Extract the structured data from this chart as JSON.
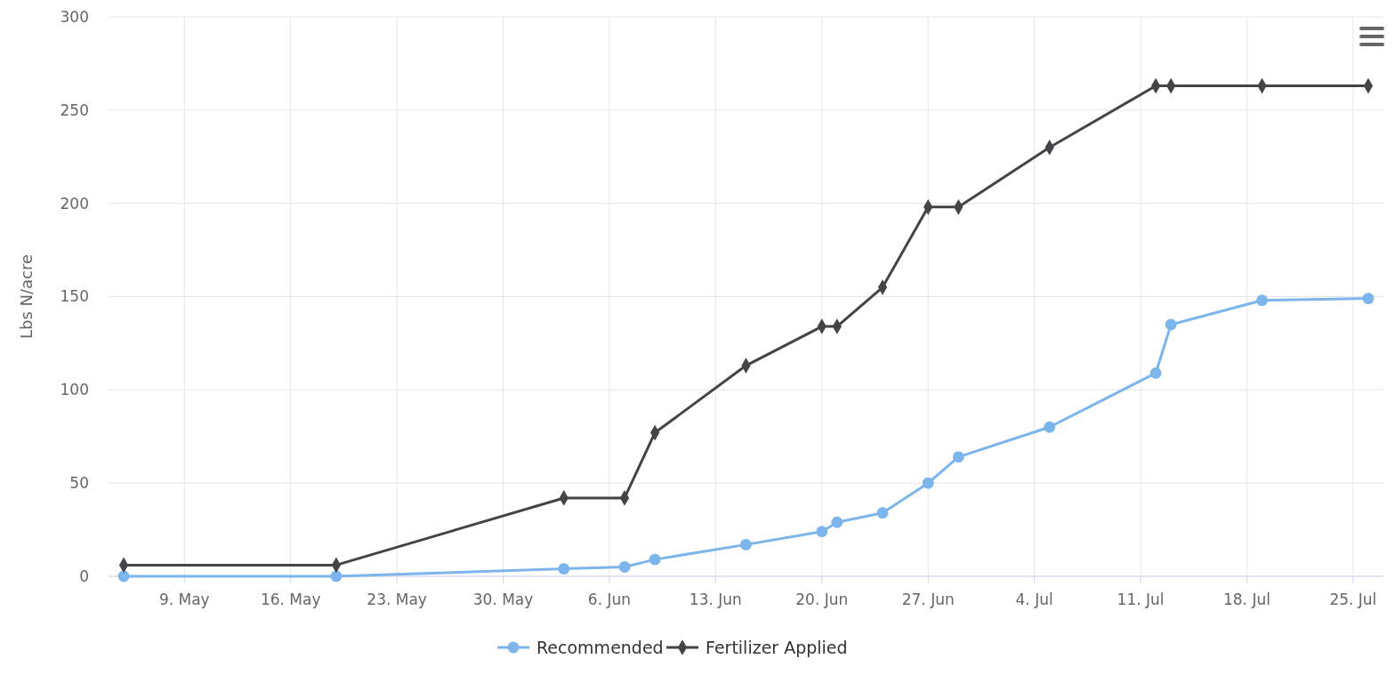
{
  "chart_data": {
    "type": "line",
    "ylabel": "Lbs N/acre",
    "xlim": [
      "--05-04",
      "--07-27"
    ],
    "ylim": [
      0,
      300
    ],
    "yticks": [
      0,
      50,
      100,
      150,
      200,
      250,
      300
    ],
    "xticks": [
      {
        "value": "--05-09",
        "label": "9. May"
      },
      {
        "value": "--05-16",
        "label": "16. May"
      },
      {
        "value": "--05-23",
        "label": "23. May"
      },
      {
        "value": "--05-30",
        "label": "30. May"
      },
      {
        "value": "--06-06",
        "label": "6. Jun"
      },
      {
        "value": "--06-13",
        "label": "13. Jun"
      },
      {
        "value": "--06-20",
        "label": "20. Jun"
      },
      {
        "value": "--06-27",
        "label": "27. Jun"
      },
      {
        "value": "--07-04",
        "label": "4. Jul"
      },
      {
        "value": "--07-11",
        "label": "11. Jul"
      },
      {
        "value": "--07-18",
        "label": "18. Jul"
      },
      {
        "value": "--07-25",
        "label": "25. Jul"
      }
    ],
    "x": [
      "--05-05",
      "--05-19",
      "--06-03",
      "--06-07",
      "--06-09",
      "--06-15",
      "--06-20",
      "--06-21",
      "--06-24",
      "--06-27",
      "--06-29",
      "--07-05",
      "--07-12",
      "--07-13",
      "--07-19",
      "--07-26"
    ],
    "series": [
      {
        "name": "Recommended",
        "color": "#7cb5ec",
        "marker": "circle",
        "values": [
          0,
          0,
          4,
          5,
          9,
          17,
          24,
          29,
          34,
          50,
          64,
          80,
          109,
          135,
          148,
          149
        ]
      },
      {
        "name": "Fertilizer Applied",
        "color": "#434348",
        "marker": "diamond",
        "values": [
          6,
          6,
          42,
          42,
          77,
          113,
          134,
          134,
          155,
          198,
          198,
          230,
          263,
          263,
          263,
          263
        ]
      }
    ],
    "grid": true,
    "legend": "bottom"
  }
}
